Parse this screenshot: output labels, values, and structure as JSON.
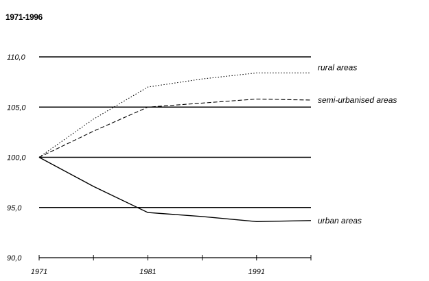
{
  "chart_data": {
    "type": "line",
    "title": "1971-1996",
    "x": [
      1971,
      1976,
      1981,
      1986,
      1991,
      1996
    ],
    "xticks": [
      "1971",
      "1981",
      "1991"
    ],
    "yticks": [
      "90,0",
      "95,0",
      "100,0",
      "105,0",
      "110,0"
    ],
    "ylim": [
      90,
      110
    ],
    "xlim": [
      1971,
      1996
    ],
    "grid": true,
    "series": [
      {
        "name": "rural areas",
        "values": [
          100.0,
          103.8,
          107.0,
          107.8,
          108.4,
          108.4
        ]
      },
      {
        "name": "semi-urbanised areas",
        "values": [
          100.0,
          102.6,
          105.0,
          105.4,
          105.8,
          105.7
        ]
      },
      {
        "name": "urban areas",
        "values": [
          100.0,
          97.1,
          94.5,
          94.1,
          93.6,
          93.7
        ]
      }
    ]
  }
}
